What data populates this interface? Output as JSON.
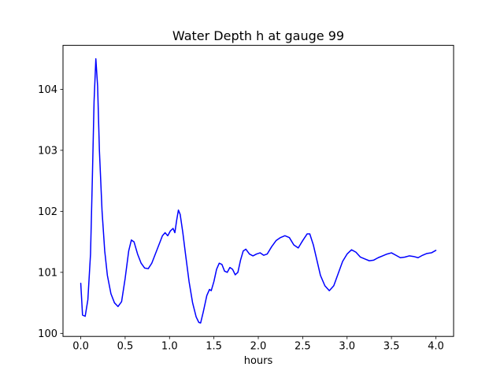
{
  "figure": {
    "title": "Water Depth h at gauge 99",
    "xlabel": "hours"
  },
  "chart_data": {
    "type": "line",
    "title": "Water Depth h at gauge 99",
    "xlabel": "hours",
    "ylabel": "",
    "grid": false,
    "legend": null,
    "line_color": "#0000ff",
    "axes_color": "#000000",
    "xlim": [
      -0.2,
      4.2
    ],
    "ylim": [
      99.95,
      104.72
    ],
    "xticks": [
      0.0,
      0.5,
      1.0,
      1.5,
      2.0,
      2.5,
      3.0,
      3.5,
      4.0
    ],
    "xtick_labels": [
      "0.0",
      "0.5",
      "1.0",
      "1.5",
      "2.0",
      "2.5",
      "3.0",
      "3.5",
      "4.0"
    ],
    "yticks": [
      100,
      101,
      102,
      103,
      104
    ],
    "ytick_labels": [
      "100",
      "101",
      "102",
      "103",
      "104"
    ],
    "x": [
      0.0,
      0.02,
      0.05,
      0.08,
      0.11,
      0.13,
      0.15,
      0.17,
      0.19,
      0.21,
      0.24,
      0.27,
      0.3,
      0.34,
      0.38,
      0.42,
      0.46,
      0.5,
      0.54,
      0.57,
      0.6,
      0.64,
      0.68,
      0.72,
      0.76,
      0.8,
      0.84,
      0.88,
      0.92,
      0.95,
      0.98,
      1.01,
      1.04,
      1.06,
      1.08,
      1.1,
      1.12,
      1.15,
      1.18,
      1.22,
      1.26,
      1.3,
      1.33,
      1.35,
      1.38,
      1.42,
      1.45,
      1.47,
      1.5,
      1.53,
      1.56,
      1.59,
      1.62,
      1.65,
      1.68,
      1.71,
      1.74,
      1.77,
      1.8,
      1.83,
      1.86,
      1.9,
      1.94,
      1.98,
      2.02,
      2.06,
      2.1,
      2.15,
      2.2,
      2.25,
      2.3,
      2.35,
      2.4,
      2.45,
      2.5,
      2.55,
      2.58,
      2.62,
      2.66,
      2.7,
      2.75,
      2.8,
      2.85,
      2.9,
      2.95,
      3.0,
      3.05,
      3.1,
      3.15,
      3.2,
      3.25,
      3.3,
      3.35,
      3.4,
      3.45,
      3.5,
      3.55,
      3.6,
      3.65,
      3.7,
      3.75,
      3.8,
      3.85,
      3.9,
      3.95,
      4.0
    ],
    "y": [
      100.82,
      100.3,
      100.28,
      100.55,
      101.3,
      102.5,
      103.8,
      104.5,
      104.05,
      103.0,
      102.0,
      101.35,
      100.95,
      100.65,
      100.5,
      100.44,
      100.52,
      100.9,
      101.35,
      101.53,
      101.5,
      101.3,
      101.15,
      101.07,
      101.06,
      101.15,
      101.3,
      101.45,
      101.6,
      101.65,
      101.6,
      101.68,
      101.72,
      101.65,
      101.85,
      102.02,
      101.95,
      101.65,
      101.3,
      100.85,
      100.5,
      100.27,
      100.18,
      100.17,
      100.35,
      100.62,
      100.72,
      100.7,
      100.85,
      101.05,
      101.15,
      101.13,
      101.02,
      101.0,
      101.08,
      101.05,
      100.96,
      101.0,
      101.2,
      101.35,
      101.38,
      101.3,
      101.27,
      101.3,
      101.32,
      101.28,
      101.3,
      101.42,
      101.52,
      101.57,
      101.6,
      101.57,
      101.45,
      101.4,
      101.52,
      101.63,
      101.63,
      101.45,
      101.2,
      100.95,
      100.78,
      100.7,
      100.78,
      100.98,
      101.18,
      101.3,
      101.37,
      101.33,
      101.25,
      101.22,
      101.19,
      101.2,
      101.24,
      101.27,
      101.3,
      101.32,
      101.28,
      101.24,
      101.25,
      101.27,
      101.26,
      101.24,
      101.28,
      101.31,
      101.32,
      101.36
    ]
  }
}
